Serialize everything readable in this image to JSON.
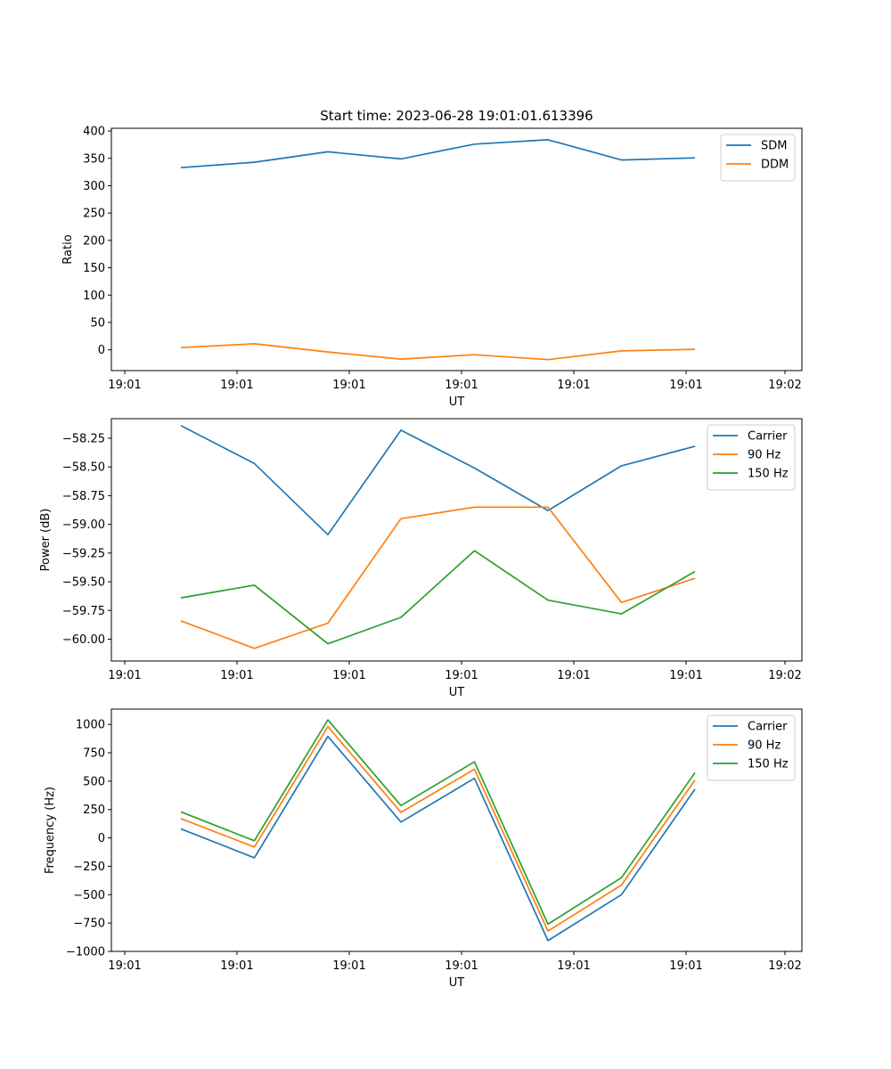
{
  "title": "Start time: 2023-06-28 19:01:01.613396",
  "colors": {
    "blue": "#1f77b4",
    "orange": "#ff7f0e",
    "green": "#2ca02c"
  },
  "chart_data": [
    {
      "type": "line",
      "xlabel": "UT",
      "ylabel": "Ratio",
      "x_tick_labels": [
        "19:01",
        "19:01",
        "19:01",
        "19:01",
        "19:01",
        "19:01",
        "19:02"
      ],
      "y_ticks": [
        0,
        50,
        100,
        150,
        200,
        250,
        300,
        350,
        400
      ],
      "y_tick_labels": [
        "0",
        "50",
        "100",
        "150",
        "200",
        "250",
        "300",
        "350",
        "400"
      ],
      "ylim": [
        -38,
        405
      ],
      "legend": "top-right",
      "series": [
        {
          "name": "SDM",
          "color": "#1f77b4",
          "values": [
            333,
            343,
            362,
            349,
            376,
            384,
            347,
            351
          ]
        },
        {
          "name": "DDM",
          "color": "#ff7f0e",
          "values": [
            4,
            11,
            -4,
            -17,
            -9,
            -18,
            -2,
            1
          ]
        }
      ]
    },
    {
      "type": "line",
      "xlabel": "UT",
      "ylabel": "Power (dB)",
      "x_tick_labels": [
        "19:01",
        "19:01",
        "19:01",
        "19:01",
        "19:01",
        "19:01",
        "19:02"
      ],
      "y_ticks": [
        -60.0,
        -59.75,
        -59.5,
        -59.25,
        -59.0,
        -58.75,
        -58.5,
        -58.25
      ],
      "y_tick_labels": [
        "−60.00",
        "−59.75",
        "−59.50",
        "−59.25",
        "−59.00",
        "−58.75",
        "−58.50",
        "−58.25"
      ],
      "ylim": [
        -60.19,
        -58.08
      ],
      "legend": "top-right",
      "series": [
        {
          "name": "Carrier",
          "color": "#1f77b4",
          "values": [
            -58.14,
            -58.47,
            -59.09,
            -58.18,
            -58.51,
            -58.88,
            -58.49,
            -58.32
          ]
        },
        {
          "name": "90 Hz",
          "color": "#ff7f0e",
          "values": [
            -59.84,
            -60.08,
            -59.86,
            -58.95,
            -58.85,
            -58.85,
            -59.68,
            -59.47
          ]
        },
        {
          "name": "150 Hz",
          "color": "#2ca02c",
          "values": [
            -59.64,
            -59.53,
            -60.04,
            -59.81,
            -59.23,
            -59.66,
            -59.78,
            -59.41
          ]
        }
      ]
    },
    {
      "type": "line",
      "xlabel": "UT",
      "ylabel": "Frequency (Hz)",
      "x_tick_labels": [
        "19:01",
        "19:01",
        "19:01",
        "19:01",
        "19:01",
        "19:01",
        "19:02"
      ],
      "y_ticks": [
        -1000,
        -750,
        -500,
        -250,
        0,
        250,
        500,
        750,
        1000
      ],
      "y_tick_labels": [
        "−1000",
        "−750",
        "−500",
        "−250",
        "0",
        "250",
        "500",
        "750",
        "1000"
      ],
      "ylim": [
        -1000,
        1135
      ],
      "legend": "top-right",
      "series": [
        {
          "name": "Carrier",
          "color": "#1f77b4",
          "values": [
            80,
            -175,
            895,
            140,
            525,
            -905,
            -500,
            430
          ]
        },
        {
          "name": "90 Hz",
          "color": "#ff7f0e",
          "values": [
            170,
            -80,
            980,
            225,
            605,
            -820,
            -415,
            510
          ]
        },
        {
          "name": "150 Hz",
          "color": "#2ca02c",
          "values": [
            230,
            -25,
            1040,
            285,
            670,
            -760,
            -350,
            575
          ]
        }
      ]
    }
  ]
}
